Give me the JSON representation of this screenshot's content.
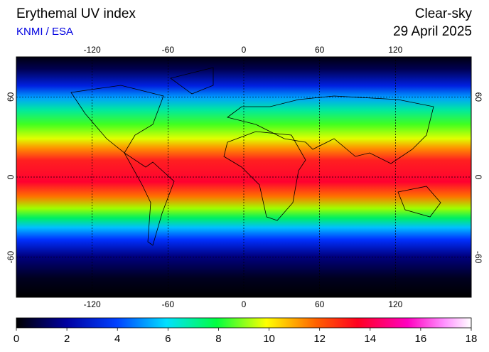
{
  "header": {
    "title": "Erythemal UV index",
    "source": "KNMI / ESA",
    "condition": "Clear-sky",
    "date": "29 April 2025"
  },
  "map": {
    "lonlim": [
      -180,
      180
    ],
    "latlim": [
      -90,
      90
    ],
    "lonticks": [
      -120,
      -60,
      0,
      60,
      120
    ],
    "latticks": [
      -60,
      0,
      60
    ],
    "grid": true
  },
  "colorbar": {
    "lim": [
      0,
      18
    ],
    "ticks": [
      0,
      2,
      4,
      6,
      8,
      10,
      12,
      14,
      16,
      18
    ]
  }
}
